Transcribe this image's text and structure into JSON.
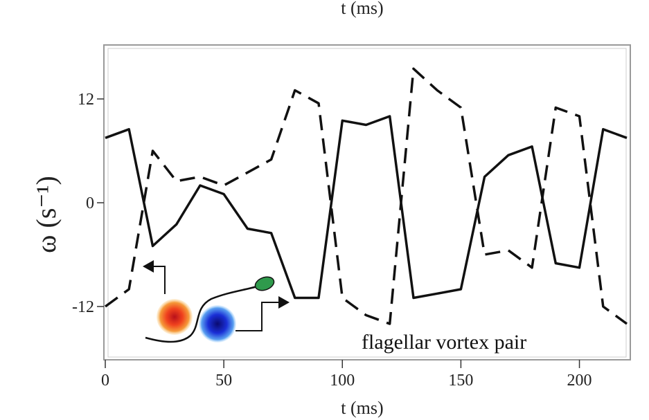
{
  "top_label": "t (ms)",
  "chart_data": {
    "type": "line",
    "xlabel": "t (ms)",
    "ylabel": "ω (s⁻¹)",
    "xlim": [
      0,
      220
    ],
    "ylim": [
      -18,
      18
    ],
    "x_ticks": [
      0,
      50,
      100,
      150,
      200
    ],
    "y_ticks": [
      12,
      0,
      -12
    ],
    "annotation": "flagellar vortex pair",
    "series": [
      {
        "style": "solid",
        "points": [
          [
            0,
            7.5
          ],
          [
            10,
            8.5
          ],
          [
            20,
            -5
          ],
          [
            30,
            -2.5
          ],
          [
            40,
            2
          ],
          [
            50,
            1
          ],
          [
            60,
            -3
          ],
          [
            70,
            -3.5
          ],
          [
            80,
            -11
          ],
          [
            90,
            -11
          ],
          [
            100,
            9.5
          ],
          [
            110,
            9
          ],
          [
            120,
            10
          ],
          [
            130,
            -11
          ],
          [
            140,
            -10.5
          ],
          [
            150,
            -10
          ],
          [
            160,
            3
          ],
          [
            170,
            5.5
          ],
          [
            180,
            6.5
          ],
          [
            190,
            -7
          ],
          [
            200,
            -7.5
          ],
          [
            210,
            8.5
          ],
          [
            220,
            7.5
          ]
        ]
      },
      {
        "style": "dashed",
        "points": [
          [
            0,
            -12
          ],
          [
            10,
            -10
          ],
          [
            20,
            6
          ],
          [
            30,
            2.5
          ],
          [
            40,
            3
          ],
          [
            50,
            2
          ],
          [
            60,
            3.5
          ],
          [
            70,
            5
          ],
          [
            80,
            13
          ],
          [
            90,
            11.5
          ],
          [
            100,
            -11
          ],
          [
            110,
            -13
          ],
          [
            120,
            -14
          ],
          [
            130,
            15.5
          ],
          [
            140,
            13
          ],
          [
            150,
            11
          ],
          [
            160,
            -6
          ],
          [
            170,
            -5.5
          ],
          [
            180,
            -7.5
          ],
          [
            190,
            11
          ],
          [
            200,
            10
          ],
          [
            210,
            -12
          ],
          [
            220,
            -14
          ]
        ]
      }
    ],
    "colors": {
      "line": "#111111",
      "positive_vortex": "#e8321e",
      "negative_vortex": "#1a2fd6",
      "cell_head": "#2f9a4c"
    }
  }
}
